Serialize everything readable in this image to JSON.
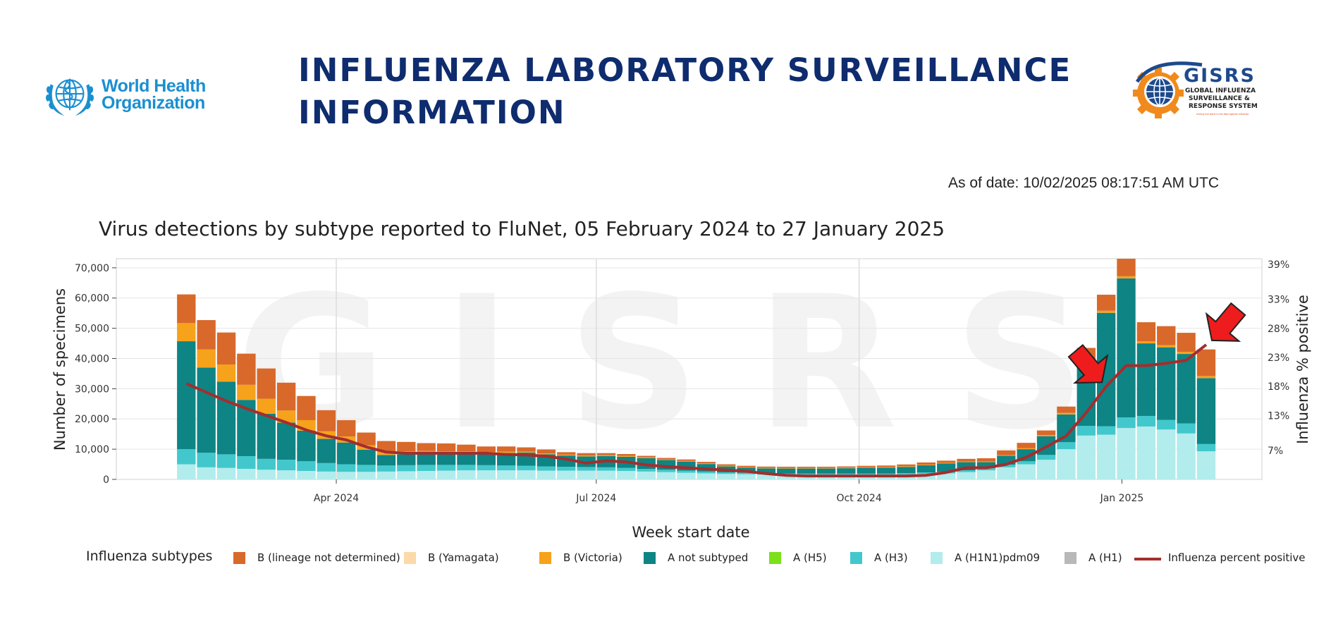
{
  "header": {
    "who_logo_text": [
      "World Health",
      "Organization"
    ],
    "title_lines": [
      "INFLUENZA LABORATORY SURVEILLANCE",
      "INFORMATION"
    ],
    "gisrs_logo": {
      "name": "GISRS",
      "line1": "GLOBAL INFLUENZA",
      "line2": "SURVEILLANCE &",
      "line3": "RESPONSE SYSTEM",
      "tagline": "Uniting the world in the fight against influenza"
    },
    "as_of": "As of date: 10/02/2025 08:17:51 AM UTC"
  },
  "colors": {
    "B_lineage_nd": "#d8692a",
    "B_yamagata": "#fcd9a8",
    "B_victoria": "#f6a21b",
    "A_not_subtyped": "#0e8484",
    "A_H5": "#7ce01b",
    "A_H3": "#42c8cc",
    "A_H1N1pdm09": "#b2ecec",
    "A_H1": "#b8b8b8",
    "percent_positive": "#a52d2d",
    "arrow": "#ee1c1c"
  },
  "chart_data": {
    "type": "bar",
    "stacked": true,
    "title": "Virus detections by subtype reported to FluNet, 05 February 2024 to 27 January 2025",
    "xlabel": "Week start date",
    "ylabel": "Number of specimens",
    "y2label": "Influenza % positive",
    "watermark": "GISRS",
    "x_ticks": [
      "Apr 2024",
      "Jul 2024",
      "Oct 2024",
      "Jan 2025"
    ],
    "x_tick_dates": [
      "2024-04-01",
      "2024-07-01",
      "2024-10-01",
      "2025-01-01"
    ],
    "x_range": [
      "2024-01-15",
      "2025-02-19"
    ],
    "y_ticks": [
      "0",
      "10,000",
      "20,000",
      "30,000",
      "40,000",
      "50,000",
      "60,000",
      "70,000"
    ],
    "ylim": [
      0,
      73000
    ],
    "y2_ticks": [
      "7%",
      "13%",
      "18%",
      "23%",
      "28%",
      "33%",
      "39%"
    ],
    "y2_tick_values": [
      7,
      13,
      18,
      23,
      28,
      33,
      39
    ],
    "y2lim": [
      2,
      40
    ],
    "weeks": [
      "2024-02-05",
      "2024-02-12",
      "2024-02-19",
      "2024-02-26",
      "2024-03-04",
      "2024-03-11",
      "2024-03-18",
      "2024-03-25",
      "2024-04-01",
      "2024-04-08",
      "2024-04-15",
      "2024-04-22",
      "2024-04-29",
      "2024-05-06",
      "2024-05-13",
      "2024-05-20",
      "2024-05-27",
      "2024-06-03",
      "2024-06-10",
      "2024-06-17",
      "2024-06-24",
      "2024-07-01",
      "2024-07-08",
      "2024-07-15",
      "2024-07-22",
      "2024-07-29",
      "2024-08-05",
      "2024-08-12",
      "2024-08-19",
      "2024-08-26",
      "2024-09-02",
      "2024-09-09",
      "2024-09-16",
      "2024-09-23",
      "2024-09-30",
      "2024-10-07",
      "2024-10-14",
      "2024-10-21",
      "2024-10-28",
      "2024-11-04",
      "2024-11-11",
      "2024-11-18",
      "2024-11-25",
      "2024-12-02",
      "2024-12-09",
      "2024-12-16",
      "2024-12-23",
      "2024-12-30",
      "2025-01-06",
      "2025-01-13",
      "2025-01-20",
      "2025-01-27"
    ],
    "series": [
      {
        "name": "A (H1N1)pdm09",
        "key": "A_H1N1pdm09",
        "values": [
          5000,
          4000,
          3800,
          3500,
          3200,
          3000,
          2800,
          2600,
          2500,
          2500,
          2600,
          2700,
          2800,
          2900,
          3000,
          3000,
          3000,
          3000,
          2900,
          2900,
          2900,
          2900,
          2800,
          2600,
          2400,
          2200,
          2000,
          1800,
          1700,
          1600,
          1500,
          1500,
          1500,
          1500,
          1500,
          1500,
          1600,
          1800,
          2000,
          2400,
          3000,
          4000,
          5000,
          6500,
          10000,
          14500,
          14800,
          17000,
          17500,
          16500,
          15200,
          9300
        ]
      },
      {
        "name": "A (H3)",
        "key": "A_H3",
        "values": [
          5000,
          4800,
          4500,
          4200,
          3600,
          3500,
          3200,
          2800,
          2500,
          2300,
          2000,
          2000,
          2000,
          1900,
          1800,
          1700,
          1600,
          1500,
          1400,
          1300,
          1200,
          1100,
          1000,
          900,
          800,
          700,
          600,
          500,
          450,
          450,
          400,
          400,
          400,
          400,
          400,
          400,
          450,
          500,
          500,
          600,
          700,
          900,
          1000,
          1600,
          2300,
          3200,
          2800,
          3500,
          3500,
          3200,
          3300,
          2400
        ]
      },
      {
        "name": "A not subtyped",
        "key": "A_not_subtyped",
        "values": [
          35700,
          28200,
          24000,
          18600,
          14900,
          12300,
          10100,
          8000,
          7200,
          5000,
          3500,
          3600,
          3800,
          3800,
          3900,
          3900,
          4200,
          4400,
          4000,
          3700,
          3500,
          3700,
          3700,
          3500,
          3200,
          3000,
          2500,
          2000,
          1700,
          1600,
          1700,
          1700,
          1700,
          1800,
          2000,
          2000,
          2100,
          2400,
          2800,
          2700,
          2000,
          2900,
          4000,
          6200,
          9200,
          21000,
          37500,
          46000,
          24000,
          24000,
          23000,
          21800
        ]
      },
      {
        "name": "A (H5)",
        "key": "A_H5",
        "values": []
      },
      {
        "name": "A (H1)",
        "key": "A_H1",
        "values": []
      },
      {
        "name": "B (Victoria)",
        "key": "B_victoria",
        "values": [
          6000,
          6000,
          5700,
          5000,
          5000,
          4000,
          3500,
          2500,
          2000,
          1500,
          1200,
          1000,
          800,
          700,
          600,
          500,
          400,
          300,
          300,
          300,
          300,
          300,
          300,
          300,
          200,
          200,
          200,
          200,
          200,
          200,
          200,
          200,
          200,
          200,
          200,
          200,
          200,
          200,
          200,
          200,
          200,
          200,
          300,
          400,
          500,
          500,
          700,
          700,
          700,
          700,
          700,
          700
        ]
      },
      {
        "name": "B (Yamagata)",
        "key": "B_yamagata",
        "values": []
      },
      {
        "name": "B (lineage not determined)",
        "key": "B_lineage_nd",
        "values": [
          9500,
          9700,
          10600,
          10300,
          10000,
          9200,
          8000,
          7000,
          5400,
          4200,
          3400,
          3100,
          2600,
          2600,
          2200,
          1800,
          1700,
          1400,
          1300,
          800,
          800,
          700,
          600,
          500,
          500,
          500,
          500,
          500,
          450,
          400,
          400,
          400,
          400,
          400,
          400,
          500,
          600,
          700,
          700,
          900,
          1100,
          1600,
          1800,
          1500,
          2100,
          4300,
          5300,
          6700,
          6300,
          6300,
          6300,
          8800
        ]
      }
    ],
    "percent_positive": [
      18.5,
      17.0,
      15.5,
      14.2,
      13.0,
      11.8,
      10.5,
      9.5,
      8.8,
      7.6,
      6.7,
      6.5,
      6.5,
      6.5,
      6.5,
      6.5,
      6.3,
      6.2,
      6.0,
      5.5,
      4.8,
      5.2,
      5.0,
      4.5,
      4.2,
      4.0,
      3.8,
      3.6,
      3.4,
      3.0,
      2.7,
      2.6,
      2.6,
      2.6,
      2.6,
      2.6,
      2.6,
      2.7,
      3.2,
      4.0,
      4.0,
      4.6,
      5.8,
      7.6,
      9.5,
      13.5,
      18.0,
      21.6,
      21.6,
      22.0,
      22.5,
      25.2
    ],
    "annotations": [
      {
        "type": "arrow",
        "target_week": "2024-12-23",
        "direction": "down-right"
      },
      {
        "type": "arrow",
        "target_week": "2025-01-27",
        "direction": "down-left"
      }
    ]
  },
  "legend": {
    "title": "Influenza subtypes",
    "items": [
      {
        "label": "B (lineage not determined)",
        "key": "B_lineage_nd"
      },
      {
        "label": "B (Yamagata)",
        "key": "B_yamagata"
      },
      {
        "label": "B (Victoria)",
        "key": "B_victoria"
      },
      {
        "label": "A not subtyped",
        "key": "A_not_subtyped"
      },
      {
        "label": "A (H5)",
        "key": "A_H5"
      },
      {
        "label": "A (H3)",
        "key": "A_H3"
      },
      {
        "label": "A (H1N1)pdm09",
        "key": "A_H1N1pdm09"
      },
      {
        "label": "A (H1)",
        "key": "A_H1"
      },
      {
        "label": "Influenza percent positive",
        "key": "percent_positive",
        "line": true
      }
    ]
  }
}
